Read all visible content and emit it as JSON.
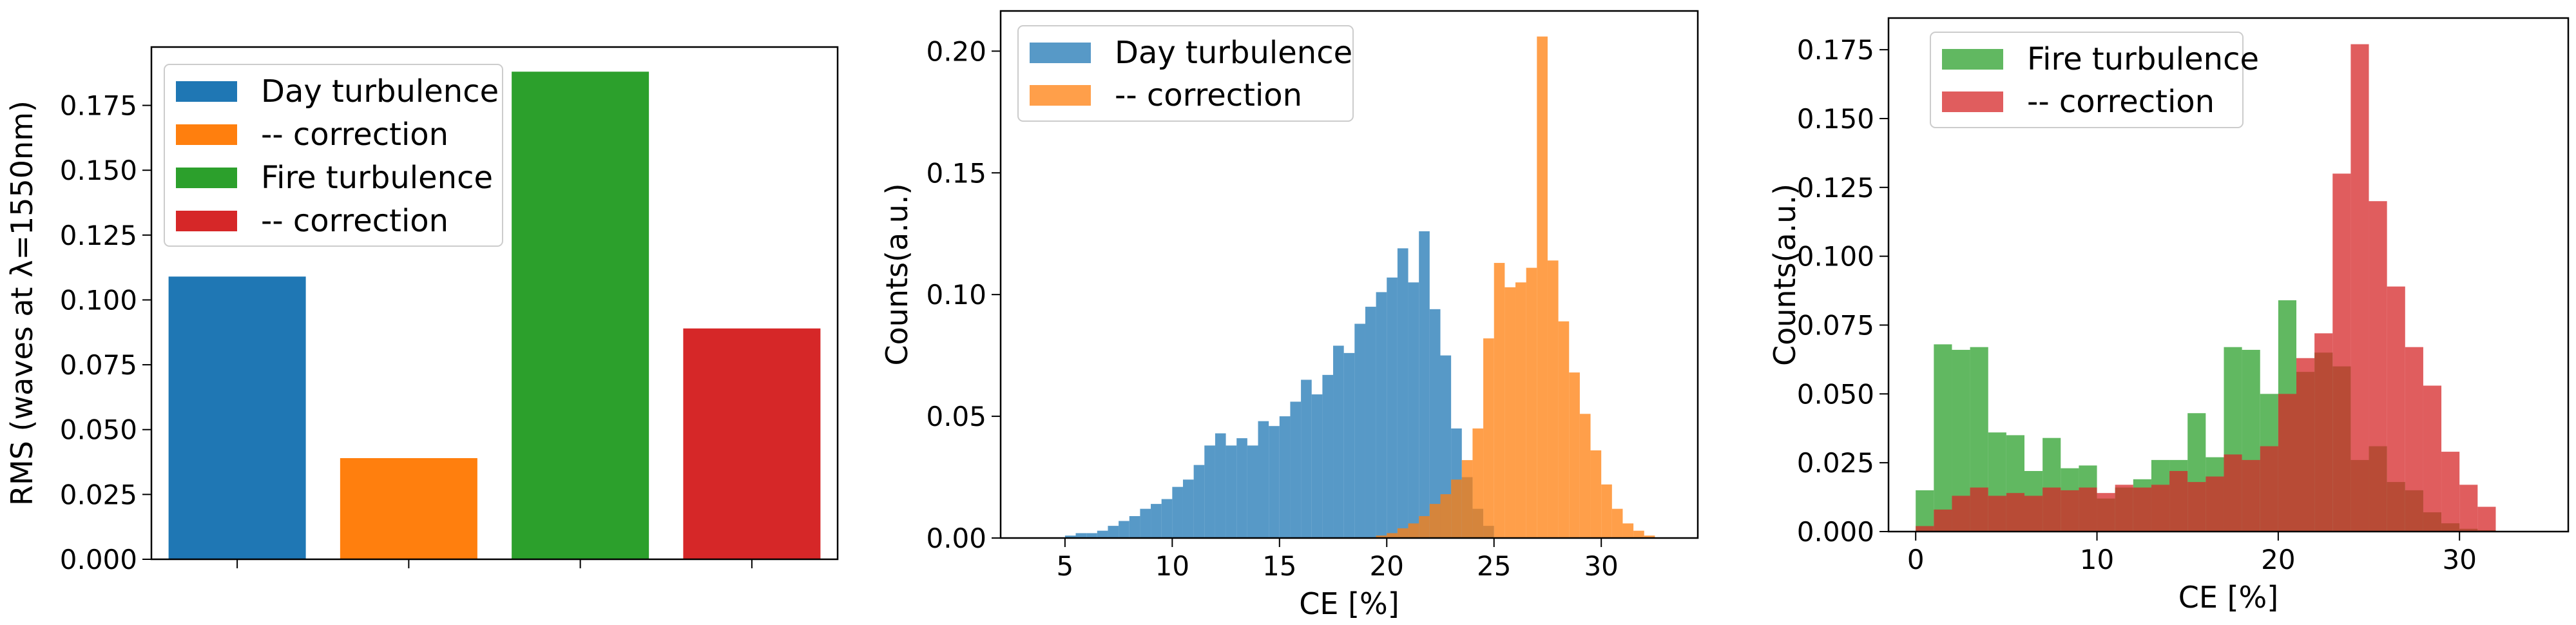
{
  "chart_data": [
    {
      "type": "bar",
      "title": "",
      "xlabel": "",
      "ylabel": "RMS (waves at λ=1550nm)",
      "ylim": [
        0,
        0.1975
      ],
      "yticks": [
        0.0,
        0.025,
        0.05,
        0.075,
        0.1,
        0.125,
        0.15,
        0.175
      ],
      "ytick_labels": [
        "0.000",
        "0.025",
        "0.050",
        "0.075",
        "0.100",
        "0.125",
        "0.150",
        "0.175"
      ],
      "categories": [
        "Day turbulence",
        " -- correction",
        "Fire turbulence",
        " -- correction"
      ],
      "values": [
        0.109,
        0.039,
        0.188,
        0.089
      ],
      "colors": [
        "#1f77b4",
        "#ff7f0e",
        "#2ca02c",
        "#d62728"
      ],
      "legend": [
        "Day turbulence",
        " -- correction",
        "Fire turbulence",
        " -- correction"
      ],
      "legend_loc": "upper-left"
    },
    {
      "type": "histogram",
      "xlabel": "CE [%]",
      "ylabel": "Counts(a.u.)",
      "xlim": [
        2,
        34.5
      ],
      "ylim": [
        0,
        0.2165
      ],
      "xticks": [
        5,
        10,
        15,
        20,
        25,
        30
      ],
      "xtick_labels": [
        "5",
        "10",
        "15",
        "20",
        "25",
        "30"
      ],
      "yticks": [
        0.0,
        0.05,
        0.1,
        0.15,
        0.2
      ],
      "ytick_labels": [
        "0.00",
        "0.05",
        "0.10",
        "0.15",
        "0.20"
      ],
      "legend_loc": "upper-left",
      "series": [
        {
          "name": "Day turbulence",
          "color": "#1f77b4",
          "opacity": 0.75,
          "bin_start": 5,
          "bin_width": 0.5,
          "values": [
            0.001,
            0.002,
            0.002,
            0.003,
            0.005,
            0.007,
            0.009,
            0.012,
            0.014,
            0.016,
            0.021,
            0.024,
            0.03,
            0.038,
            0.043,
            0.038,
            0.041,
            0.038,
            0.048,
            0.046,
            0.05,
            0.056,
            0.065,
            0.059,
            0.067,
            0.079,
            0.076,
            0.088,
            0.095,
            0.101,
            0.107,
            0.119,
            0.105,
            0.126,
            0.094,
            0.075,
            0.045,
            0.025,
            0.012,
            0.005
          ]
        },
        {
          "name": " -- correction",
          "color": "#ff7f0e",
          "opacity": 0.75,
          "bin_start": 19.5,
          "bin_width": 0.5,
          "values": [
            0.001,
            0.002,
            0.004,
            0.006,
            0.009,
            0.014,
            0.018,
            0.024,
            0.032,
            0.045,
            0.082,
            0.113,
            0.103,
            0.105,
            0.111,
            0.206,
            0.114,
            0.089,
            0.068,
            0.051,
            0.036,
            0.022,
            0.012,
            0.006,
            0.003,
            0.001
          ]
        }
      ]
    },
    {
      "type": "histogram",
      "xlabel": "CE [%]",
      "ylabel": "Counts(a.u.)",
      "xlim": [
        -1.5,
        36
      ],
      "ylim": [
        0,
        0.1865
      ],
      "xticks": [
        0,
        10,
        20,
        30
      ],
      "xtick_labels": [
        "0",
        "10",
        "20",
        "30"
      ],
      "yticks": [
        0.0,
        0.025,
        0.05,
        0.075,
        0.1,
        0.125,
        0.15,
        0.175
      ],
      "ytick_labels": [
        "0.000",
        "0.025",
        "0.050",
        "0.075",
        "0.100",
        "0.125",
        "0.150",
        "0.175"
      ],
      "legend_loc": "upper-left",
      "series": [
        {
          "name": "Fire turbulence",
          "color": "#2ca02c",
          "opacity": 0.75,
          "bin_start": 0,
          "bin_width": 1,
          "values": [
            0.015,
            0.068,
            0.066,
            0.067,
            0.036,
            0.035,
            0.022,
            0.034,
            0.023,
            0.024,
            0.012,
            0.016,
            0.019,
            0.026,
            0.026,
            0.043,
            0.027,
            0.067,
            0.066,
            0.05,
            0.084,
            0.058,
            0.065,
            0.06,
            0.026,
            0.031,
            0.018,
            0.015,
            0.007,
            0.003,
            0.001,
            0.0005
          ]
        },
        {
          "name": " -- correction",
          "color": "#d62728",
          "opacity": 0.75,
          "bin_start": 0,
          "bin_width": 1,
          "values": [
            0.002,
            0.008,
            0.013,
            0.016,
            0.013,
            0.014,
            0.013,
            0.016,
            0.015,
            0.016,
            0.014,
            0.017,
            0.016,
            0.017,
            0.022,
            0.018,
            0.02,
            0.028,
            0.026,
            0.031,
            0.05,
            0.063,
            0.072,
            0.13,
            0.177,
            0.12,
            0.089,
            0.067,
            0.053,
            0.029,
            0.017,
            0.009
          ]
        }
      ]
    }
  ]
}
